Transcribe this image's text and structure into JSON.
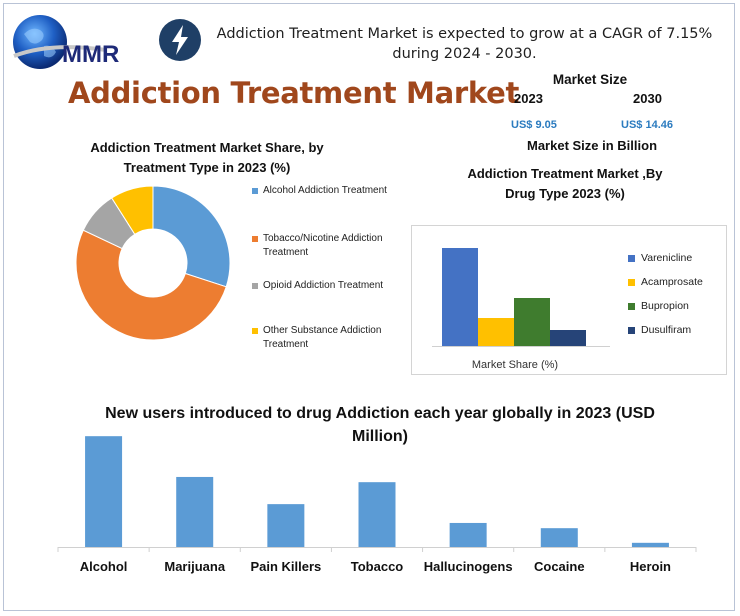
{
  "header": {
    "logo_text": "MMR",
    "cagr_text": "Addiction Treatment Market is expected to grow at a CAGR of 7.15% during 2024 - 2030.",
    "main_title": "Addiction Treatment Market"
  },
  "market_size": {
    "heading": "Market Size",
    "year_start": "2023",
    "year_end": "2030",
    "value_start": "US$ 9.05",
    "value_end": "US$ 14.46",
    "unit_caption": "Market Size in Billion"
  },
  "colors": {
    "title_brown": "#a0471c",
    "value_blue": "#2b7bbf",
    "blue": "#5b9bd5",
    "orange": "#ed7d31",
    "gray": "#a5a5a5",
    "yellow": "#ffc000",
    "drug_blue": "#4472c4",
    "drug_green": "#3f7c2e",
    "drug_navy": "#264478"
  },
  "chart_data": [
    {
      "type": "pie",
      "title": "Addiction Treatment Market Share, by Treatment Type in  2023 (%)",
      "donut": true,
      "legend_position": "right",
      "categories": [
        "Alcohol Addiction Treatment",
        "Tobacco/Nicotine Addiction Treatment",
        "Opioid Addiction Treatment",
        "Other Substance Addiction Treatment"
      ],
      "values": [
        30,
        52,
        9,
        9
      ],
      "colors": [
        "#5b9bd5",
        "#ed7d31",
        "#a5a5a5",
        "#ffc000"
      ]
    },
    {
      "type": "bar",
      "title": "Addiction Treatment Market ,By Drug Type 2023 (%)",
      "categories": [
        "Market Share (%)"
      ],
      "series": [
        {
          "name": "Varenicline",
          "values": [
            49
          ],
          "color": "#4472c4"
        },
        {
          "name": "Acamprosate",
          "values": [
            14
          ],
          "color": "#ffc000"
        },
        {
          "name": "Bupropion",
          "values": [
            24
          ],
          "color": "#3f7c2e"
        },
        {
          "name": "Dusulfiram",
          "values": [
            8
          ],
          "color": "#264478"
        }
      ],
      "ylim": [
        0,
        50
      ],
      "legend_position": "right",
      "grid": false
    },
    {
      "type": "bar",
      "title": "New users introduced to drug Addiction each year globally in 2023 (USD Million)",
      "categories": [
        "Alcohol",
        "Marijuana",
        "Pain Killers",
        "Tobacco",
        "Hallucinogens",
        "Cocaine",
        "Heroin"
      ],
      "values": [
        106,
        67,
        41,
        62,
        23,
        18,
        4
      ],
      "ylim": [
        0,
        110
      ],
      "color": "#5b9bd5",
      "grid": false
    }
  ]
}
